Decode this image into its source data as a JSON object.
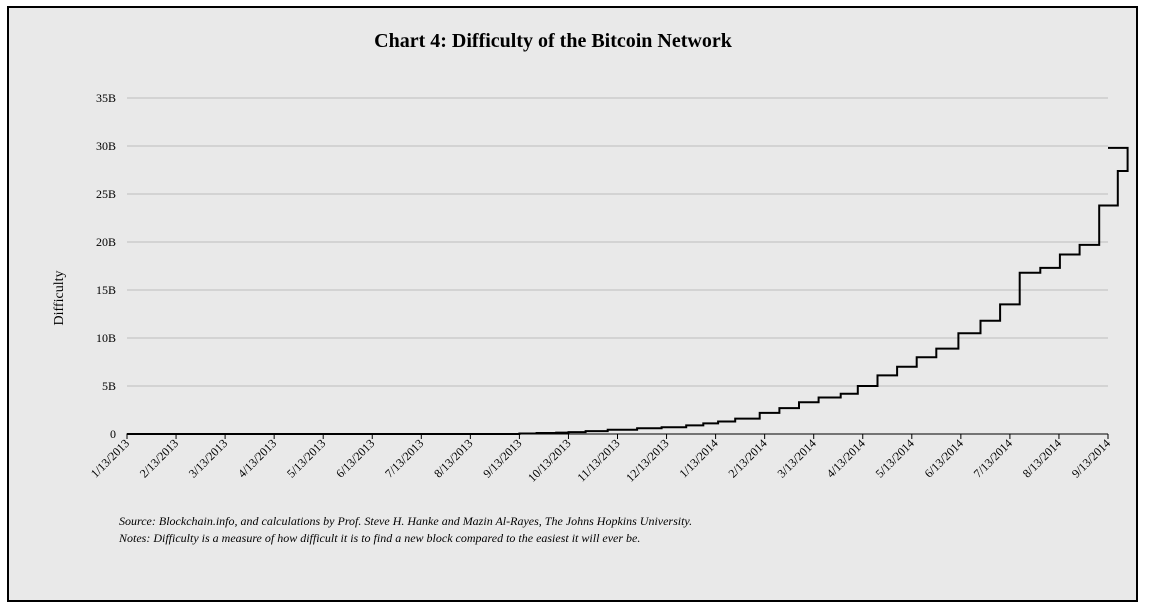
{
  "chart_data": {
    "type": "line",
    "title": "Chart 4: Difficulty of the Bitcoin Network",
    "ylabel": "Difficulty",
    "xlabel": "",
    "ylim": [
      0,
      35
    ],
    "yunit": "billions",
    "y_ticks": [
      0,
      5,
      10,
      15,
      20,
      25,
      30,
      35
    ],
    "y_tick_labels": [
      "0",
      "5B",
      "10B",
      "15B",
      "20B",
      "25B",
      "30B",
      "35B"
    ],
    "x_tick_labels": [
      "1/13/2013",
      "2/13/2013",
      "3/13/2013",
      "4/13/2013",
      "5/13/2013",
      "6/13/2013",
      "7/13/2013",
      "8/13/2013",
      "9/13/2013",
      "10/13/2013",
      "11/13/2013",
      "12/13/2013",
      "1/13/2014",
      "2/13/2014",
      "3/13/2014",
      "4/13/2014",
      "5/13/2014",
      "6/13/2014",
      "7/13/2014",
      "8/13/2014",
      "9/13/2014"
    ],
    "x_range_months": [
      0,
      20
    ],
    "grid": true,
    "legend": "none",
    "series": [
      {
        "name": "Difficulty",
        "step": true,
        "points": [
          [
            0,
            0.0
          ],
          [
            8.0,
            0.05
          ],
          [
            8.35,
            0.1
          ],
          [
            8.75,
            0.15
          ],
          [
            9.0,
            0.2
          ],
          [
            9.35,
            0.3
          ],
          [
            9.8,
            0.45
          ],
          [
            10.4,
            0.6
          ],
          [
            10.9,
            0.7
          ],
          [
            11.4,
            0.9
          ],
          [
            11.75,
            1.1
          ],
          [
            12.05,
            1.3
          ],
          [
            12.4,
            1.6
          ],
          [
            12.9,
            2.2
          ],
          [
            13.3,
            2.7
          ],
          [
            13.7,
            3.3
          ],
          [
            14.1,
            3.8
          ],
          [
            14.55,
            4.2
          ],
          [
            14.9,
            5.0
          ],
          [
            15.3,
            6.1
          ],
          [
            15.7,
            7.0
          ],
          [
            16.1,
            8.0
          ],
          [
            16.5,
            8.9
          ],
          [
            16.95,
            10.5
          ],
          [
            17.4,
            11.8
          ],
          [
            17.8,
            13.5
          ],
          [
            18.2,
            16.8
          ],
          [
            18.62,
            17.3
          ],
          [
            19.02,
            18.7
          ],
          [
            19.42,
            19.7
          ],
          [
            19.82,
            23.8
          ],
          [
            20.2,
            27.4
          ],
          [
            20.4,
            29.8
          ]
        ]
      }
    ]
  },
  "source_text": "Source: Blockchain.info, and calculations by Prof. Steve H. Hanke and Mazin Al-Rayes, The Johns Hopkins University.",
  "notes_text": "Notes: Difficulty is a measure of how difficult it is to find a new block compared to the easiest it will ever be.",
  "colors": {
    "background": "#e9e9e9",
    "grid": "#bdbdbd",
    "line": "#000000",
    "border": "#000000"
  }
}
